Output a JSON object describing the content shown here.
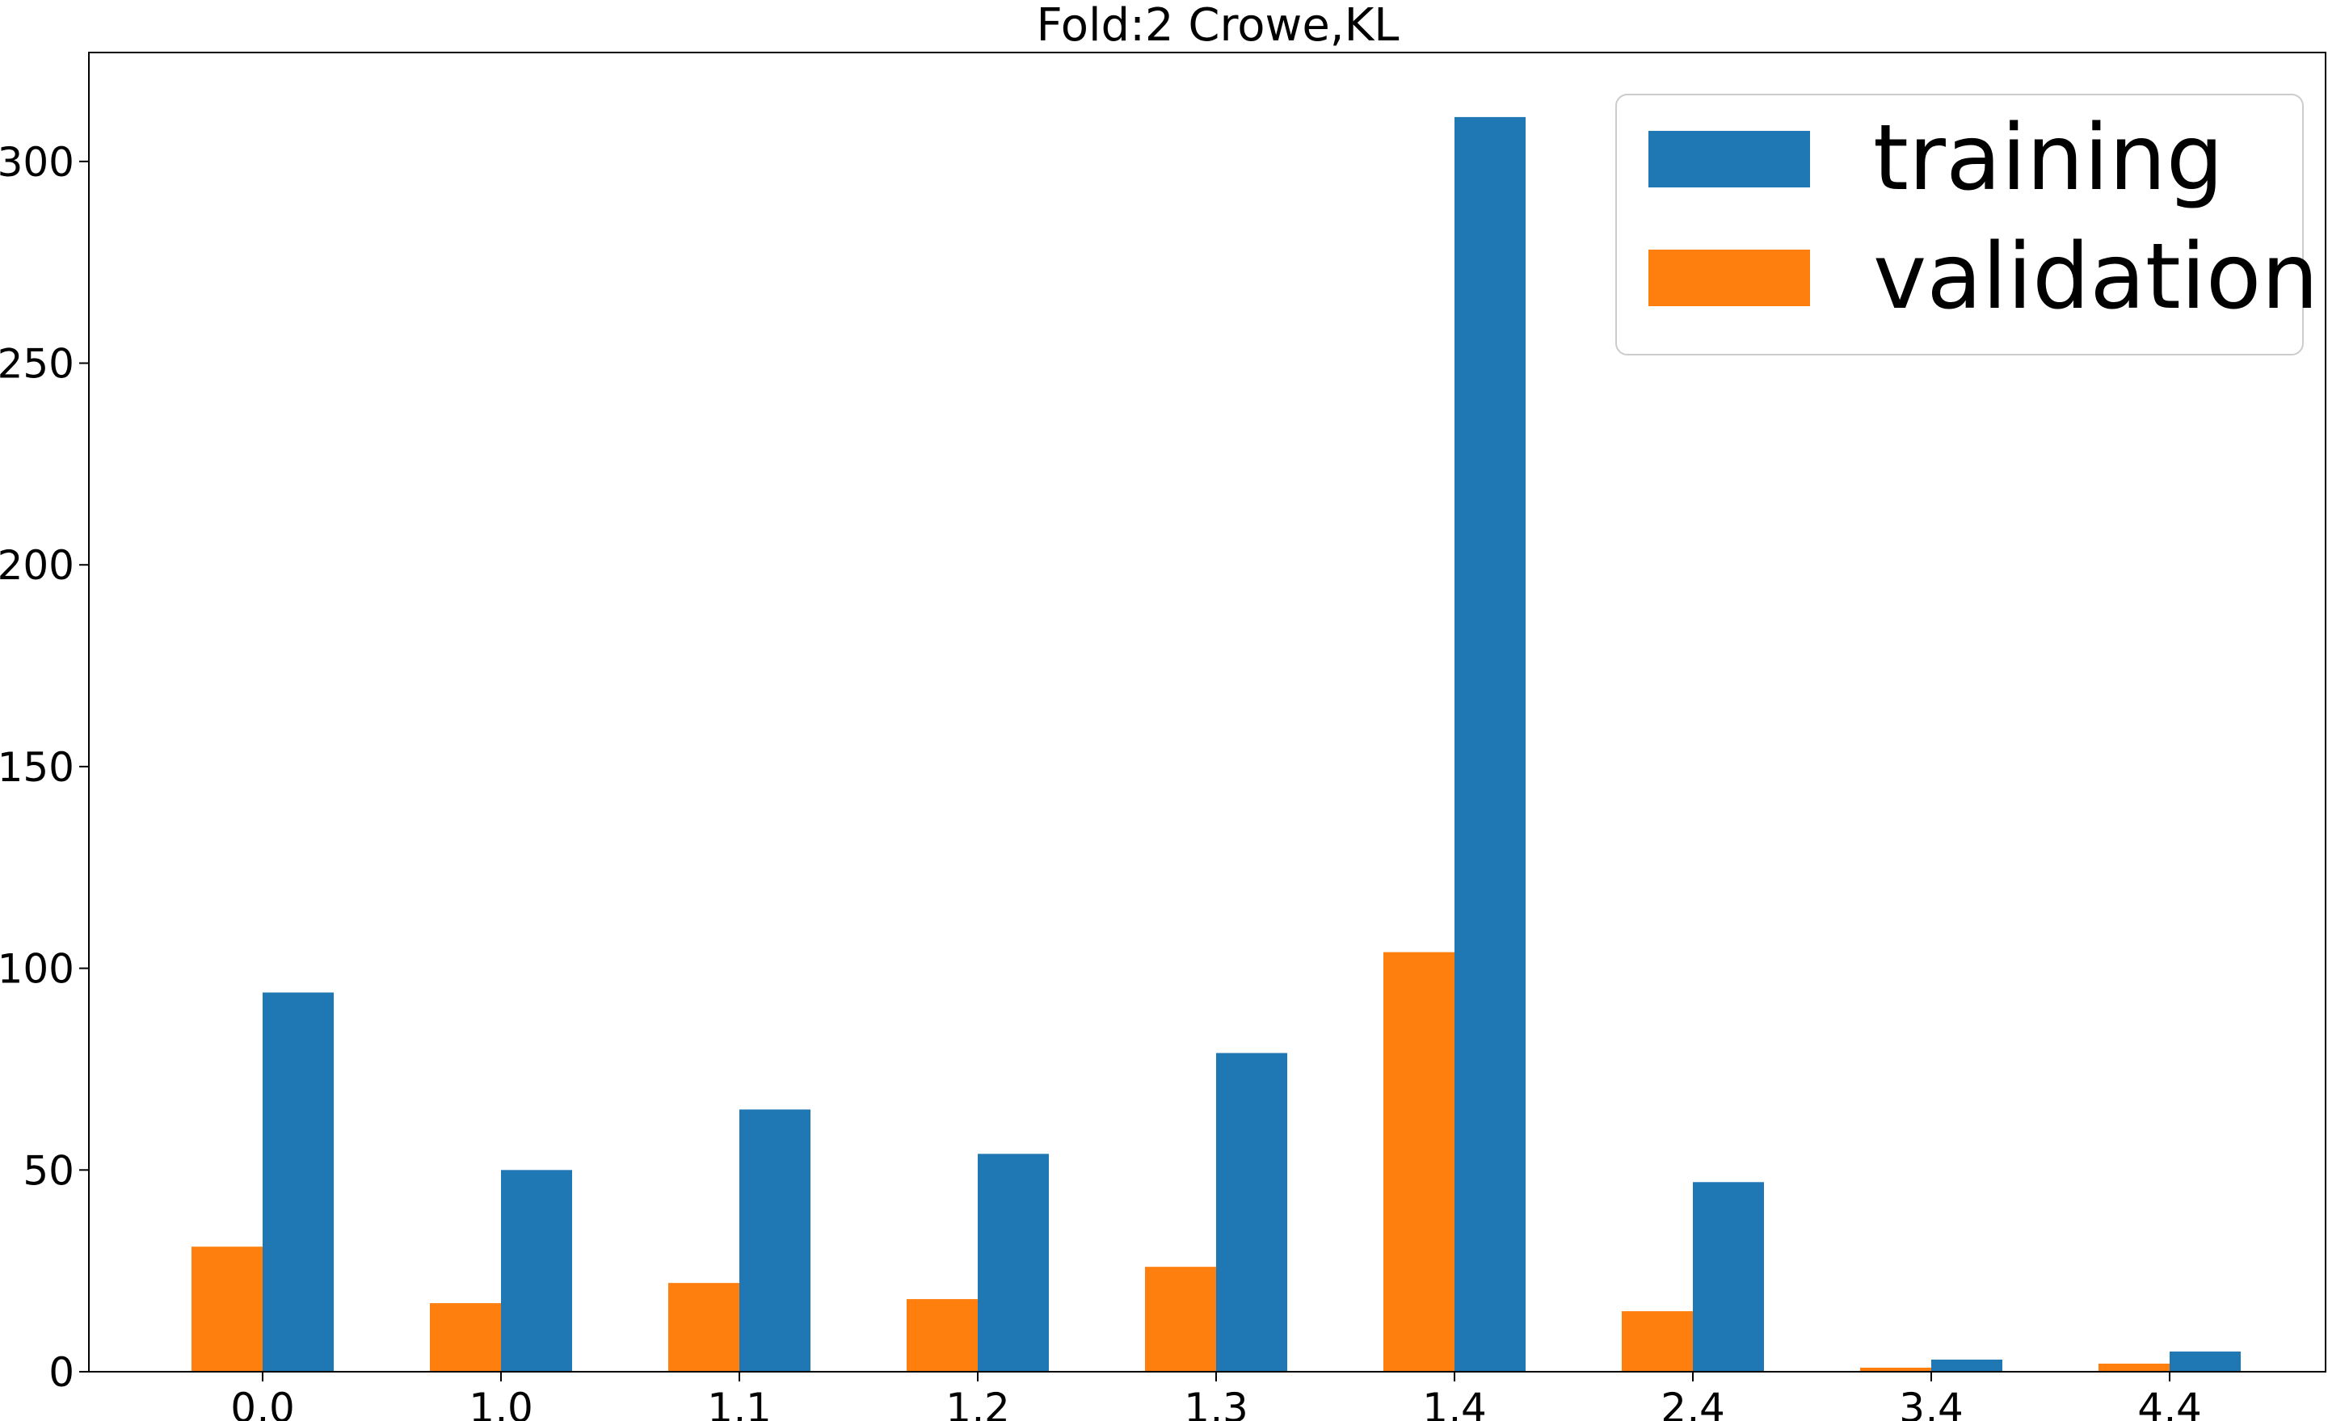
{
  "chart_data": {
    "type": "bar",
    "title": "Fold:2 Crowe,KL",
    "xlabel": "",
    "ylabel": "",
    "categories": [
      "0,0",
      "1,0",
      "1,1",
      "1,2",
      "1,3",
      "1,4",
      "2,4",
      "3,4",
      "4,4"
    ],
    "series": [
      {
        "name": "validation",
        "color": "#ff7f0e",
        "values": [
          31,
          17,
          22,
          18,
          26,
          104,
          15,
          1,
          2
        ]
      },
      {
        "name": "training",
        "color": "#1f77b4",
        "values": [
          94,
          50,
          65,
          54,
          79,
          311,
          47,
          3,
          5
        ]
      }
    ],
    "legend_order": [
      "training",
      "validation"
    ],
    "legend_position": "top-right",
    "ylim": [
      0,
      327
    ],
    "yticks": [
      0,
      50,
      100,
      150,
      200,
      250,
      300
    ],
    "grid": false
  }
}
